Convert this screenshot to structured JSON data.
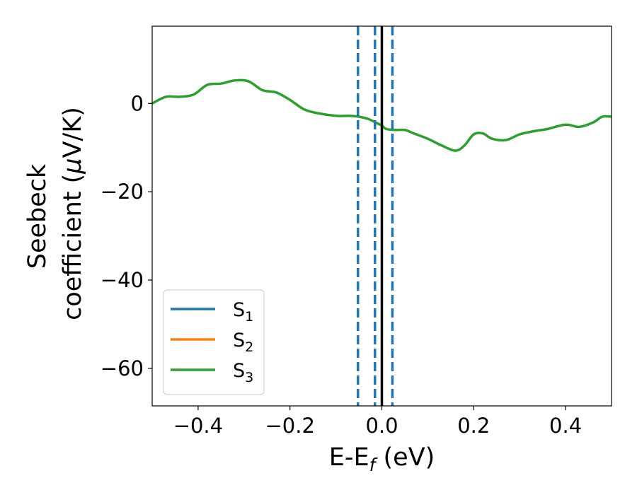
{
  "chart_data": {
    "type": "line",
    "title": "",
    "xlabel": {
      "base": "E-E",
      "sub": "f",
      "unit": " (eV)"
    },
    "ylabel": {
      "line1": "Seebeck",
      "line2_prefix": "coefficient  (",
      "mu": "μ",
      "line2_suffix": "V/K)"
    },
    "xlim": [
      -0.5,
      0.5
    ],
    "ylim": [
      -68.5,
      17.5
    ],
    "xticks": [
      -0.4,
      -0.2,
      0.0,
      0.2,
      0.4
    ],
    "xtick_labels": [
      "−0.4",
      "−0.2",
      "0.0",
      "0.2",
      "0.4"
    ],
    "yticks": [
      0,
      -20,
      -40,
      -60
    ],
    "ytick_labels": [
      "0",
      "−20",
      "−40",
      "−60"
    ],
    "grid": false,
    "legend_position": "lower-left",
    "series": [
      {
        "name": "S",
        "sub": "1",
        "color": "#1f77b4",
        "x": [],
        "y": []
      },
      {
        "name": "S",
        "sub": "2",
        "color": "#ff7f0e",
        "x": [],
        "y": []
      },
      {
        "name": "S",
        "sub": "3",
        "color": "#2ca02c",
        "x": [
          -0.5,
          -0.47,
          -0.44,
          -0.41,
          -0.38,
          -0.35,
          -0.32,
          -0.29,
          -0.26,
          -0.23,
          -0.2,
          -0.17,
          -0.14,
          -0.1,
          -0.07,
          -0.05,
          -0.03,
          -0.01,
          0.0,
          0.01,
          0.03,
          0.05,
          0.07,
          0.1,
          0.13,
          0.16,
          0.18,
          0.2,
          0.22,
          0.24,
          0.27,
          0.3,
          0.33,
          0.36,
          0.4,
          0.43,
          0.46,
          0.48,
          0.5
        ],
        "y": [
          0.0,
          1.5,
          1.5,
          2.0,
          4.2,
          4.5,
          5.2,
          5.0,
          3.0,
          2.5,
          0.8,
          -1.3,
          -2.2,
          -2.8,
          -2.8,
          -3.0,
          -3.5,
          -4.5,
          -5.0,
          -5.8,
          -6.0,
          -6.0,
          -6.8,
          -8.0,
          -9.5,
          -10.7,
          -9.5,
          -7.0,
          -6.8,
          -8.0,
          -8.3,
          -7.0,
          -6.3,
          -5.8,
          -4.8,
          -5.3,
          -4.3,
          -3.0,
          -3.0
        ]
      }
    ],
    "vlines": [
      {
        "x": -0.052,
        "color": "#1f77b4",
        "style": "dashed"
      },
      {
        "x": -0.015,
        "color": "#1f77b4",
        "style": "dashed"
      },
      {
        "x": 0.023,
        "color": "#1f77b4",
        "style": "dashed"
      },
      {
        "x": 0.0,
        "color": "#000000",
        "style": "solid"
      }
    ]
  }
}
